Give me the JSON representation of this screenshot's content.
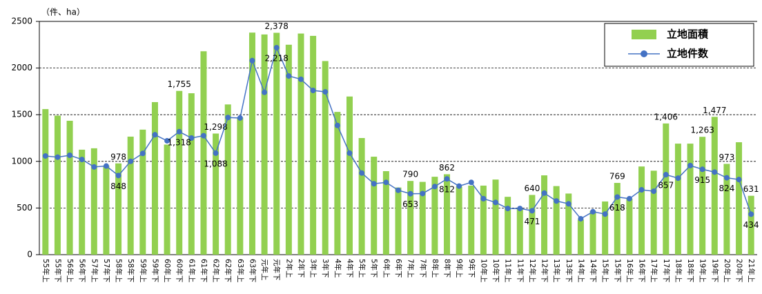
{
  "chart_data": {
    "type": "bar-line",
    "y_label": "（件、ha）",
    "categories": [
      "55年上",
      "55年下",
      "56年上",
      "56年下",
      "57年上",
      "57年下",
      "58年上",
      "58年下",
      "59年上",
      "59年下",
      "60年上",
      "60年下",
      "61年上",
      "61年下",
      "62年上",
      "62年下",
      "63年上",
      "63年下",
      "元年上",
      "元年下",
      "2年上",
      "2年下",
      "3年上",
      "3年下",
      "4年上",
      "4年下",
      "5年上",
      "5年下",
      "6年上",
      "6年下",
      "7年上",
      "7年下",
      "8年上",
      "8年下",
      "9年上",
      "9年下",
      "10年上",
      "10年下",
      "11年上",
      "11年下",
      "12年上",
      "12年下",
      "13年上",
      "13年下",
      "14年上",
      "14年下",
      "15年上",
      "15年下",
      "16年上",
      "16年下",
      "17年上",
      "17年下",
      "18年上",
      "18年下",
      "19年上",
      "19年下",
      "20年上",
      "20年下",
      "21年上"
    ],
    "series": [
      {
        "name": "立地面積",
        "kind": "bar",
        "color": "#92d050",
        "values": [
          1560,
          1490,
          1435,
          1125,
          1140,
          955,
          978,
          1265,
          1340,
          1635,
          1180,
          1755,
          1730,
          2180,
          1298,
          1610,
          1470,
          2380,
          2360,
          2378,
          2250,
          2370,
          2345,
          2075,
          1530,
          1695,
          1250,
          1050,
          895,
          720,
          790,
          780,
          835,
          862,
          730,
          740,
          740,
          805,
          620,
          495,
          640,
          850,
          735,
          655,
          375,
          470,
          570,
          769,
          600,
          945,
          900,
          1406,
          1190,
          1190,
          1263,
          1477,
          973,
          1205,
          631
        ],
        "value_labels": [
          null,
          null,
          null,
          null,
          null,
          null,
          "978",
          null,
          null,
          null,
          null,
          "1,755",
          null,
          null,
          "1,298",
          null,
          null,
          null,
          null,
          "2,378",
          null,
          null,
          null,
          null,
          null,
          null,
          null,
          null,
          null,
          null,
          "790",
          null,
          null,
          "862",
          null,
          null,
          null,
          null,
          null,
          null,
          "640",
          null,
          null,
          null,
          null,
          null,
          null,
          "769",
          null,
          null,
          null,
          "1,406",
          null,
          null,
          "1,263",
          "1,477",
          "973",
          null,
          "631"
        ]
      },
      {
        "name": "立地件数",
        "kind": "line",
        "color": "#4472c4",
        "values": [
          1058,
          1045,
          1065,
          1020,
          940,
          950,
          848,
          1000,
          1085,
          1285,
          1220,
          1318,
          1250,
          1275,
          1088,
          1470,
          1465,
          2080,
          1740,
          2218,
          1915,
          1880,
          1760,
          1745,
          1385,
          1088,
          875,
          760,
          775,
          690,
          653,
          655,
          730,
          812,
          735,
          775,
          600,
          560,
          495,
          495,
          471,
          660,
          575,
          545,
          385,
          460,
          435,
          618,
          600,
          695,
          680,
          857,
          820,
          955,
          915,
          885,
          824,
          805,
          434
        ],
        "value_labels": [
          null,
          null,
          null,
          null,
          null,
          null,
          "848",
          null,
          null,
          null,
          null,
          "1,318",
          null,
          null,
          "1,088",
          null,
          null,
          null,
          null,
          "2,218",
          null,
          null,
          null,
          null,
          null,
          null,
          null,
          null,
          null,
          null,
          "653",
          null,
          null,
          "812",
          null,
          null,
          null,
          null,
          null,
          null,
          "471",
          null,
          null,
          null,
          null,
          null,
          null,
          "618",
          null,
          null,
          null,
          "857",
          null,
          null,
          "915",
          null,
          "824",
          null,
          "434"
        ]
      }
    ],
    "ylim": [
      0,
      2500
    ],
    "yticks": [
      0,
      500,
      1000,
      1500,
      2000,
      2500
    ],
    "grid": true
  }
}
